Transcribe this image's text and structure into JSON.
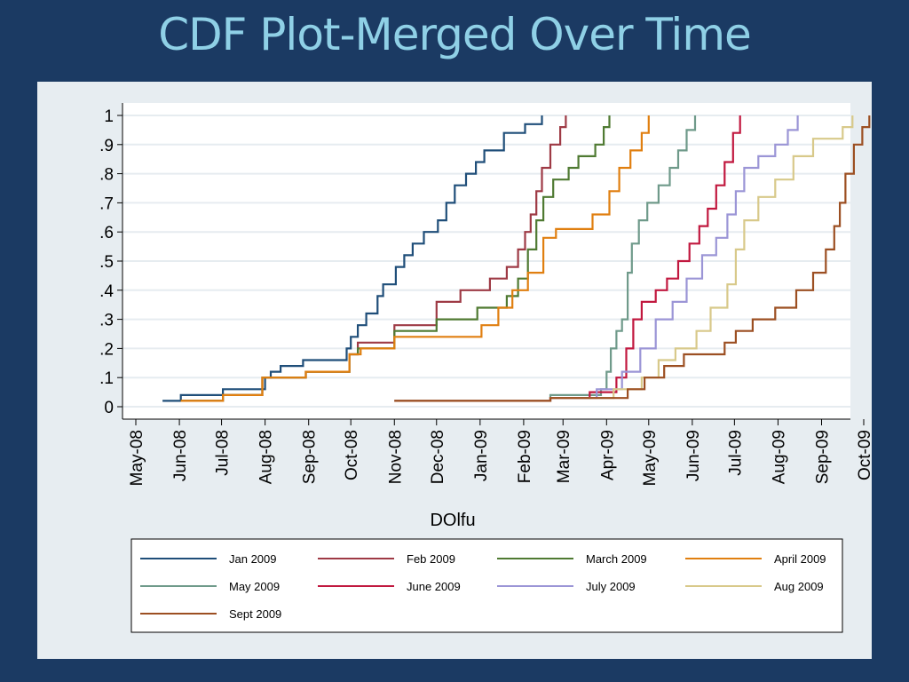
{
  "slide": {
    "title": "CDF Plot-Merged Over Time"
  },
  "chart_data": {
    "type": "line",
    "step": true,
    "title": "CDF Plot-Merged Over Time",
    "xlabel": "DOlfu",
    "ylabel": "",
    "xlim": [
      "2008-05-01",
      "2009-10-01"
    ],
    "ylim": [
      0,
      1
    ],
    "x_ticks": [
      "May-08",
      "Jun-08",
      "Jul-08",
      "Aug-08",
      "Sep-08",
      "Oct-08",
      "Nov-08",
      "Dec-08",
      "Jan-09",
      "Feb-09",
      "Mar-09",
      "Apr-09",
      "May-09",
      "Jun-09",
      "Jul-09",
      "Aug-09",
      "Sep-09",
      "Oct-09"
    ],
    "y_ticks": [
      "0",
      ".1",
      ".2",
      ".3",
      ".4",
      ".5",
      ".6",
      ".7",
      ".8",
      ".9",
      "1"
    ],
    "y_tick_values": [
      0,
      0.1,
      0.2,
      0.3,
      0.4,
      0.5,
      0.6,
      0.7,
      0.8,
      0.9,
      1
    ],
    "grid": true,
    "legend_position": "bottom",
    "series": [
      {
        "name": "Jan 2009",
        "color": "#1f4e79",
        "points": [
          [
            "2008-05-20",
            0.02
          ],
          [
            "2008-06-02",
            0.04
          ],
          [
            "2008-07-02",
            0.06
          ],
          [
            "2008-08-01",
            0.1
          ],
          [
            "2008-08-05",
            0.12
          ],
          [
            "2008-08-12",
            0.14
          ],
          [
            "2008-08-28",
            0.16
          ],
          [
            "2008-09-28",
            0.2
          ],
          [
            "2008-10-01",
            0.24
          ],
          [
            "2008-10-06",
            0.28
          ],
          [
            "2008-10-12",
            0.32
          ],
          [
            "2008-10-20",
            0.38
          ],
          [
            "2008-10-24",
            0.42
          ],
          [
            "2008-11-02",
            0.48
          ],
          [
            "2008-11-08",
            0.52
          ],
          [
            "2008-11-14",
            0.56
          ],
          [
            "2008-11-22",
            0.6
          ],
          [
            "2008-12-02",
            0.64
          ],
          [
            "2008-12-08",
            0.7
          ],
          [
            "2008-12-14",
            0.76
          ],
          [
            "2008-12-22",
            0.8
          ],
          [
            "2008-12-29",
            0.84
          ],
          [
            "2009-01-04",
            0.88
          ],
          [
            "2009-01-18",
            0.94
          ],
          [
            "2009-02-02",
            0.97
          ],
          [
            "2009-02-14",
            1.0
          ]
        ]
      },
      {
        "name": "Feb 2009",
        "color": "#9e3a45",
        "points": [
          [
            "2008-06-02",
            0.02
          ],
          [
            "2008-07-02",
            0.04
          ],
          [
            "2008-07-30",
            0.1
          ],
          [
            "2008-08-30",
            0.12
          ],
          [
            "2008-09-30",
            0.18
          ],
          [
            "2008-10-06",
            0.22
          ],
          [
            "2008-10-15",
            0.22
          ],
          [
            "2008-11-01",
            0.28
          ],
          [
            "2008-12-01",
            0.36
          ],
          [
            "2008-12-18",
            0.4
          ],
          [
            "2009-01-08",
            0.44
          ],
          [
            "2009-01-20",
            0.48
          ],
          [
            "2009-01-28",
            0.54
          ],
          [
            "2009-02-02",
            0.6
          ],
          [
            "2009-02-06",
            0.66
          ],
          [
            "2009-02-10",
            0.74
          ],
          [
            "2009-02-14",
            0.82
          ],
          [
            "2009-02-20",
            0.9
          ],
          [
            "2009-02-27",
            0.96
          ],
          [
            "2009-03-03",
            1.0
          ]
        ]
      },
      {
        "name": "March 2009",
        "color": "#4f7a32",
        "points": [
          [
            "2008-06-02",
            0.02
          ],
          [
            "2008-07-02",
            0.04
          ],
          [
            "2008-07-30",
            0.1
          ],
          [
            "2008-08-30",
            0.12
          ],
          [
            "2008-09-30",
            0.18
          ],
          [
            "2008-10-06",
            0.2
          ],
          [
            "2008-11-01",
            0.26
          ],
          [
            "2008-12-01",
            0.3
          ],
          [
            "2008-12-30",
            0.34
          ],
          [
            "2009-01-20",
            0.38
          ],
          [
            "2009-01-28",
            0.44
          ],
          [
            "2009-02-04",
            0.54
          ],
          [
            "2009-02-10",
            0.64
          ],
          [
            "2009-02-15",
            0.72
          ],
          [
            "2009-02-22",
            0.78
          ],
          [
            "2009-03-05",
            0.82
          ],
          [
            "2009-03-12",
            0.86
          ],
          [
            "2009-03-24",
            0.9
          ],
          [
            "2009-03-30",
            0.96
          ],
          [
            "2009-04-03",
            1.0
          ]
        ]
      },
      {
        "name": "April 2009",
        "color": "#e07f10",
        "points": [
          [
            "2008-06-02",
            0.02
          ],
          [
            "2008-07-02",
            0.04
          ],
          [
            "2008-07-30",
            0.1
          ],
          [
            "2008-08-30",
            0.12
          ],
          [
            "2008-09-30",
            0.18
          ],
          [
            "2008-10-08",
            0.2
          ],
          [
            "2008-11-01",
            0.24
          ],
          [
            "2009-01-02",
            0.28
          ],
          [
            "2009-01-14",
            0.34
          ],
          [
            "2009-01-24",
            0.4
          ],
          [
            "2009-02-04",
            0.46
          ],
          [
            "2009-02-15",
            0.58
          ],
          [
            "2009-02-24",
            0.61
          ],
          [
            "2009-03-22",
            0.66
          ],
          [
            "2009-04-03",
            0.74
          ],
          [
            "2009-04-10",
            0.82
          ],
          [
            "2009-04-18",
            0.88
          ],
          [
            "2009-04-26",
            0.94
          ],
          [
            "2009-05-01",
            1.0
          ]
        ]
      },
      {
        "name": "May 2009",
        "color": "#6f9a8a",
        "points": [
          [
            "2008-11-01",
            0.02
          ],
          [
            "2009-02-20",
            0.04
          ],
          [
            "2009-03-28",
            0.06
          ],
          [
            "2009-04-01",
            0.12
          ],
          [
            "2009-04-04",
            0.2
          ],
          [
            "2009-04-08",
            0.26
          ],
          [
            "2009-04-12",
            0.3
          ],
          [
            "2009-04-16",
            0.46
          ],
          [
            "2009-04-19",
            0.56
          ],
          [
            "2009-04-24",
            0.64
          ],
          [
            "2009-04-30",
            0.7
          ],
          [
            "2009-05-08",
            0.76
          ],
          [
            "2009-05-16",
            0.82
          ],
          [
            "2009-05-22",
            0.88
          ],
          [
            "2009-05-28",
            0.95
          ],
          [
            "2009-06-03",
            1.0
          ]
        ]
      },
      {
        "name": "June 2009",
        "color": "#c1183f",
        "points": [
          [
            "2008-11-01",
            0.02
          ],
          [
            "2009-02-20",
            0.03
          ],
          [
            "2009-03-20",
            0.05
          ],
          [
            "2009-04-08",
            0.1
          ],
          [
            "2009-04-15",
            0.2
          ],
          [
            "2009-04-20",
            0.3
          ],
          [
            "2009-04-26",
            0.36
          ],
          [
            "2009-05-06",
            0.4
          ],
          [
            "2009-05-14",
            0.44
          ],
          [
            "2009-05-22",
            0.5
          ],
          [
            "2009-05-30",
            0.56
          ],
          [
            "2009-06-06",
            0.62
          ],
          [
            "2009-06-12",
            0.68
          ],
          [
            "2009-06-18",
            0.76
          ],
          [
            "2009-06-24",
            0.84
          ],
          [
            "2009-06-30",
            0.94
          ],
          [
            "2009-07-05",
            1.0
          ]
        ]
      },
      {
        "name": "July 2009",
        "color": "#9b95d6",
        "points": [
          [
            "2008-11-01",
            0.02
          ],
          [
            "2009-02-20",
            0.03
          ],
          [
            "2009-03-25",
            0.06
          ],
          [
            "2009-04-12",
            0.12
          ],
          [
            "2009-04-25",
            0.2
          ],
          [
            "2009-05-06",
            0.3
          ],
          [
            "2009-05-18",
            0.36
          ],
          [
            "2009-05-28",
            0.44
          ],
          [
            "2009-06-08",
            0.52
          ],
          [
            "2009-06-18",
            0.58
          ],
          [
            "2009-06-26",
            0.66
          ],
          [
            "2009-07-02",
            0.74
          ],
          [
            "2009-07-08",
            0.82
          ],
          [
            "2009-07-18",
            0.86
          ],
          [
            "2009-07-30",
            0.9
          ],
          [
            "2009-08-08",
            0.95
          ],
          [
            "2009-08-15",
            1.0
          ]
        ]
      },
      {
        "name": "Aug 2009",
        "color": "#d8c98a",
        "points": [
          [
            "2008-11-01",
            0.02
          ],
          [
            "2009-02-20",
            0.03
          ],
          [
            "2009-04-06",
            0.06
          ],
          [
            "2009-04-26",
            0.1
          ],
          [
            "2009-05-08",
            0.16
          ],
          [
            "2009-05-20",
            0.2
          ],
          [
            "2009-06-04",
            0.26
          ],
          [
            "2009-06-14",
            0.34
          ],
          [
            "2009-06-26",
            0.42
          ],
          [
            "2009-07-02",
            0.54
          ],
          [
            "2009-07-08",
            0.64
          ],
          [
            "2009-07-18",
            0.72
          ],
          [
            "2009-07-30",
            0.78
          ],
          [
            "2009-08-12",
            0.86
          ],
          [
            "2009-08-26",
            0.92
          ],
          [
            "2009-09-16",
            0.96
          ],
          [
            "2009-09-23",
            1.0
          ]
        ]
      },
      {
        "name": "Sept 2009",
        "color": "#9c4f22",
        "points": [
          [
            "2008-11-01",
            0.02
          ],
          [
            "2009-02-20",
            0.03
          ],
          [
            "2009-04-16",
            0.06
          ],
          [
            "2009-04-28",
            0.1
          ],
          [
            "2009-05-12",
            0.14
          ],
          [
            "2009-05-26",
            0.18
          ],
          [
            "2009-06-24",
            0.22
          ],
          [
            "2009-07-02",
            0.26
          ],
          [
            "2009-07-14",
            0.3
          ],
          [
            "2009-07-30",
            0.34
          ],
          [
            "2009-08-14",
            0.4
          ],
          [
            "2009-08-26",
            0.46
          ],
          [
            "2009-09-04",
            0.54
          ],
          [
            "2009-09-10",
            0.62
          ],
          [
            "2009-09-14",
            0.7
          ],
          [
            "2009-09-18",
            0.8
          ],
          [
            "2009-09-24",
            0.9
          ],
          [
            "2009-09-30",
            0.96
          ],
          [
            "2009-10-05",
            1.0
          ]
        ]
      }
    ]
  }
}
